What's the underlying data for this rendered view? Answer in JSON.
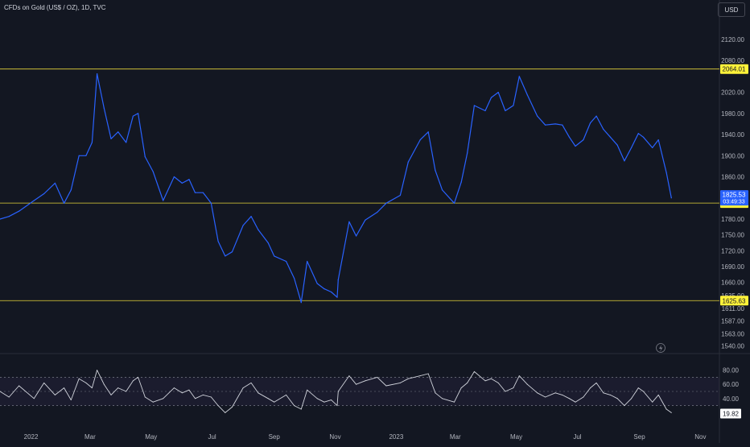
{
  "header": {
    "title": "CFDs on Gold (US$ / OZ), 1D, TVC",
    "currency": "USD"
  },
  "chart_data": [
    {
      "type": "line",
      "name": "price",
      "ylim": [
        1530,
        2155
      ],
      "y_ticks": [
        2120,
        2080,
        2020,
        1980,
        1940,
        1900,
        1860,
        1780,
        1750,
        1720,
        1690,
        1660,
        1635,
        1611,
        1587,
        1563,
        1540
      ],
      "y_tick_labels": [
        "2120.00",
        "2080.00",
        "2020.00",
        "1980.00",
        "1940.00",
        "1900.00",
        "1860.00",
        "1780.00",
        "1750.00",
        "1720.00",
        "1690.00",
        "1660.00",
        "1635.00",
        "1611.00",
        "1587.00",
        "1563.00",
        "1540.00"
      ],
      "levels": [
        {
          "value": 2064.01,
          "label": "2064.01"
        },
        {
          "value": 1810.25,
          "label": "1810.25"
        },
        {
          "value": 1625.63,
          "label": "1625.63"
        }
      ],
      "last": {
        "value": 1825.53,
        "label": "1825.53",
        "countdown": "03:49:33"
      },
      "x_ticks": [
        "2022",
        "Mar",
        "May",
        "Jul",
        "Sep",
        "Nov",
        "2023",
        "Mar",
        "May",
        "Jul",
        "Sep",
        "Nov"
      ],
      "series": [
        {
          "color": "#2962ff",
          "x": [
            "2021-12-01",
            "2021-12-10",
            "2021-12-20",
            "2022-01-04",
            "2022-01-14",
            "2022-01-25",
            "2022-02-03",
            "2022-02-10",
            "2022-02-18",
            "2022-02-25",
            "2022-03-03",
            "2022-03-08",
            "2022-03-15",
            "2022-03-22",
            "2022-03-29",
            "2022-04-06",
            "2022-04-13",
            "2022-04-18",
            "2022-04-25",
            "2022-05-03",
            "2022-05-13",
            "2022-05-24",
            "2022-06-01",
            "2022-06-08",
            "2022-06-14",
            "2022-06-22",
            "2022-06-30",
            "2022-07-07",
            "2022-07-14",
            "2022-07-21",
            "2022-08-01",
            "2022-08-09",
            "2022-08-16",
            "2022-08-26",
            "2022-09-01",
            "2022-09-13",
            "2022-09-21",
            "2022-09-28",
            "2022-10-04",
            "2022-10-14",
            "2022-10-21",
            "2022-10-28",
            "2022-11-03",
            "2022-11-04",
            "2022-11-15",
            "2022-11-22",
            "2022-12-01",
            "2022-12-13",
            "2022-12-22",
            "2023-01-05",
            "2023-01-13",
            "2023-01-25",
            "2023-02-02",
            "2023-02-09",
            "2023-02-16",
            "2023-02-28",
            "2023-03-07",
            "2023-03-13",
            "2023-03-20",
            "2023-03-31",
            "2023-04-06",
            "2023-04-13",
            "2023-04-20",
            "2023-04-28",
            "2023-05-04",
            "2023-05-12",
            "2023-05-22",
            "2023-05-30",
            "2023-06-09",
            "2023-06-16",
            "2023-06-23",
            "2023-06-29",
            "2023-07-07",
            "2023-07-14",
            "2023-07-20",
            "2023-07-27",
            "2023-08-03",
            "2023-08-10",
            "2023-08-17",
            "2023-08-24",
            "2023-08-31",
            "2023-09-05",
            "2023-09-14",
            "2023-09-20",
            "2023-09-28",
            "2023-10-03"
          ],
          "y": [
            1780,
            1785,
            1795,
            1815,
            1828,
            1848,
            1810,
            1835,
            1900,
            1900,
            1925,
            2055,
            1990,
            1932,
            1945,
            1925,
            1975,
            1980,
            1898,
            1870,
            1815,
            1860,
            1848,
            1855,
            1830,
            1830,
            1810,
            1738,
            1710,
            1718,
            1768,
            1785,
            1760,
            1735,
            1710,
            1700,
            1668,
            1622,
            1700,
            1658,
            1648,
            1642,
            1632,
            1665,
            1775,
            1748,
            1778,
            1793,
            1810,
            1825,
            1888,
            1930,
            1945,
            1872,
            1835,
            1810,
            1850,
            1905,
            1995,
            1985,
            2010,
            2020,
            1985,
            1995,
            2050,
            2015,
            1975,
            1958,
            1960,
            1958,
            1935,
            1918,
            1930,
            1962,
            1975,
            1950,
            1935,
            1920,
            1890,
            1915,
            1942,
            1935,
            1915,
            1930,
            1868,
            1820
          ]
        }
      ]
    },
    {
      "type": "line",
      "name": "oscillator",
      "ylim": [
        0,
        100
      ],
      "band": [
        30,
        70
      ],
      "y_ticks": [
        80,
        60,
        40
      ],
      "y_tick_labels": [
        "80.00",
        "60.00",
        "40.00"
      ],
      "last": {
        "value": 19.82,
        "label": "19.82"
      },
      "series": [
        {
          "color": "#d1d4dc",
          "x": [
            "2021-12-01",
            "2021-12-10",
            "2021-12-20",
            "2022-01-04",
            "2022-01-14",
            "2022-01-25",
            "2022-02-03",
            "2022-02-10",
            "2022-02-18",
            "2022-02-25",
            "2022-03-03",
            "2022-03-08",
            "2022-03-15",
            "2022-03-22",
            "2022-03-29",
            "2022-04-06",
            "2022-04-13",
            "2022-04-18",
            "2022-04-25",
            "2022-05-03",
            "2022-05-13",
            "2022-05-24",
            "2022-06-01",
            "2022-06-08",
            "2022-06-14",
            "2022-06-22",
            "2022-06-30",
            "2022-07-07",
            "2022-07-14",
            "2022-07-21",
            "2022-08-01",
            "2022-08-09",
            "2022-08-16",
            "2022-08-26",
            "2022-09-01",
            "2022-09-13",
            "2022-09-21",
            "2022-09-28",
            "2022-10-04",
            "2022-10-14",
            "2022-10-21",
            "2022-10-28",
            "2022-11-03",
            "2022-11-04",
            "2022-11-15",
            "2022-11-22",
            "2022-12-01",
            "2022-12-13",
            "2022-12-22",
            "2023-01-05",
            "2023-01-13",
            "2023-01-25",
            "2023-02-02",
            "2023-02-09",
            "2023-02-16",
            "2023-02-28",
            "2023-03-07",
            "2023-03-13",
            "2023-03-20",
            "2023-03-31",
            "2023-04-06",
            "2023-04-13",
            "2023-04-20",
            "2023-04-28",
            "2023-05-04",
            "2023-05-12",
            "2023-05-22",
            "2023-05-30",
            "2023-06-09",
            "2023-06-16",
            "2023-06-23",
            "2023-06-29",
            "2023-07-07",
            "2023-07-14",
            "2023-07-20",
            "2023-07-27",
            "2023-08-03",
            "2023-08-10",
            "2023-08-17",
            "2023-08-24",
            "2023-08-31",
            "2023-09-05",
            "2023-09-14",
            "2023-09-20",
            "2023-09-28",
            "2023-10-03"
          ],
          "y": [
            50,
            42,
            58,
            40,
            62,
            45,
            55,
            38,
            68,
            62,
            55,
            80,
            60,
            45,
            55,
            50,
            65,
            70,
            42,
            35,
            40,
            55,
            48,
            52,
            40,
            45,
            42,
            30,
            20,
            28,
            55,
            62,
            48,
            40,
            35,
            45,
            30,
            25,
            52,
            40,
            35,
            38,
            30,
            50,
            72,
            60,
            65,
            70,
            58,
            62,
            68,
            72,
            75,
            48,
            40,
            35,
            55,
            62,
            78,
            65,
            68,
            62,
            50,
            55,
            72,
            60,
            48,
            42,
            48,
            45,
            40,
            35,
            42,
            55,
            62,
            48,
            45,
            40,
            30,
            40,
            55,
            50,
            35,
            45,
            25,
            20
          ]
        }
      ]
    }
  ]
}
